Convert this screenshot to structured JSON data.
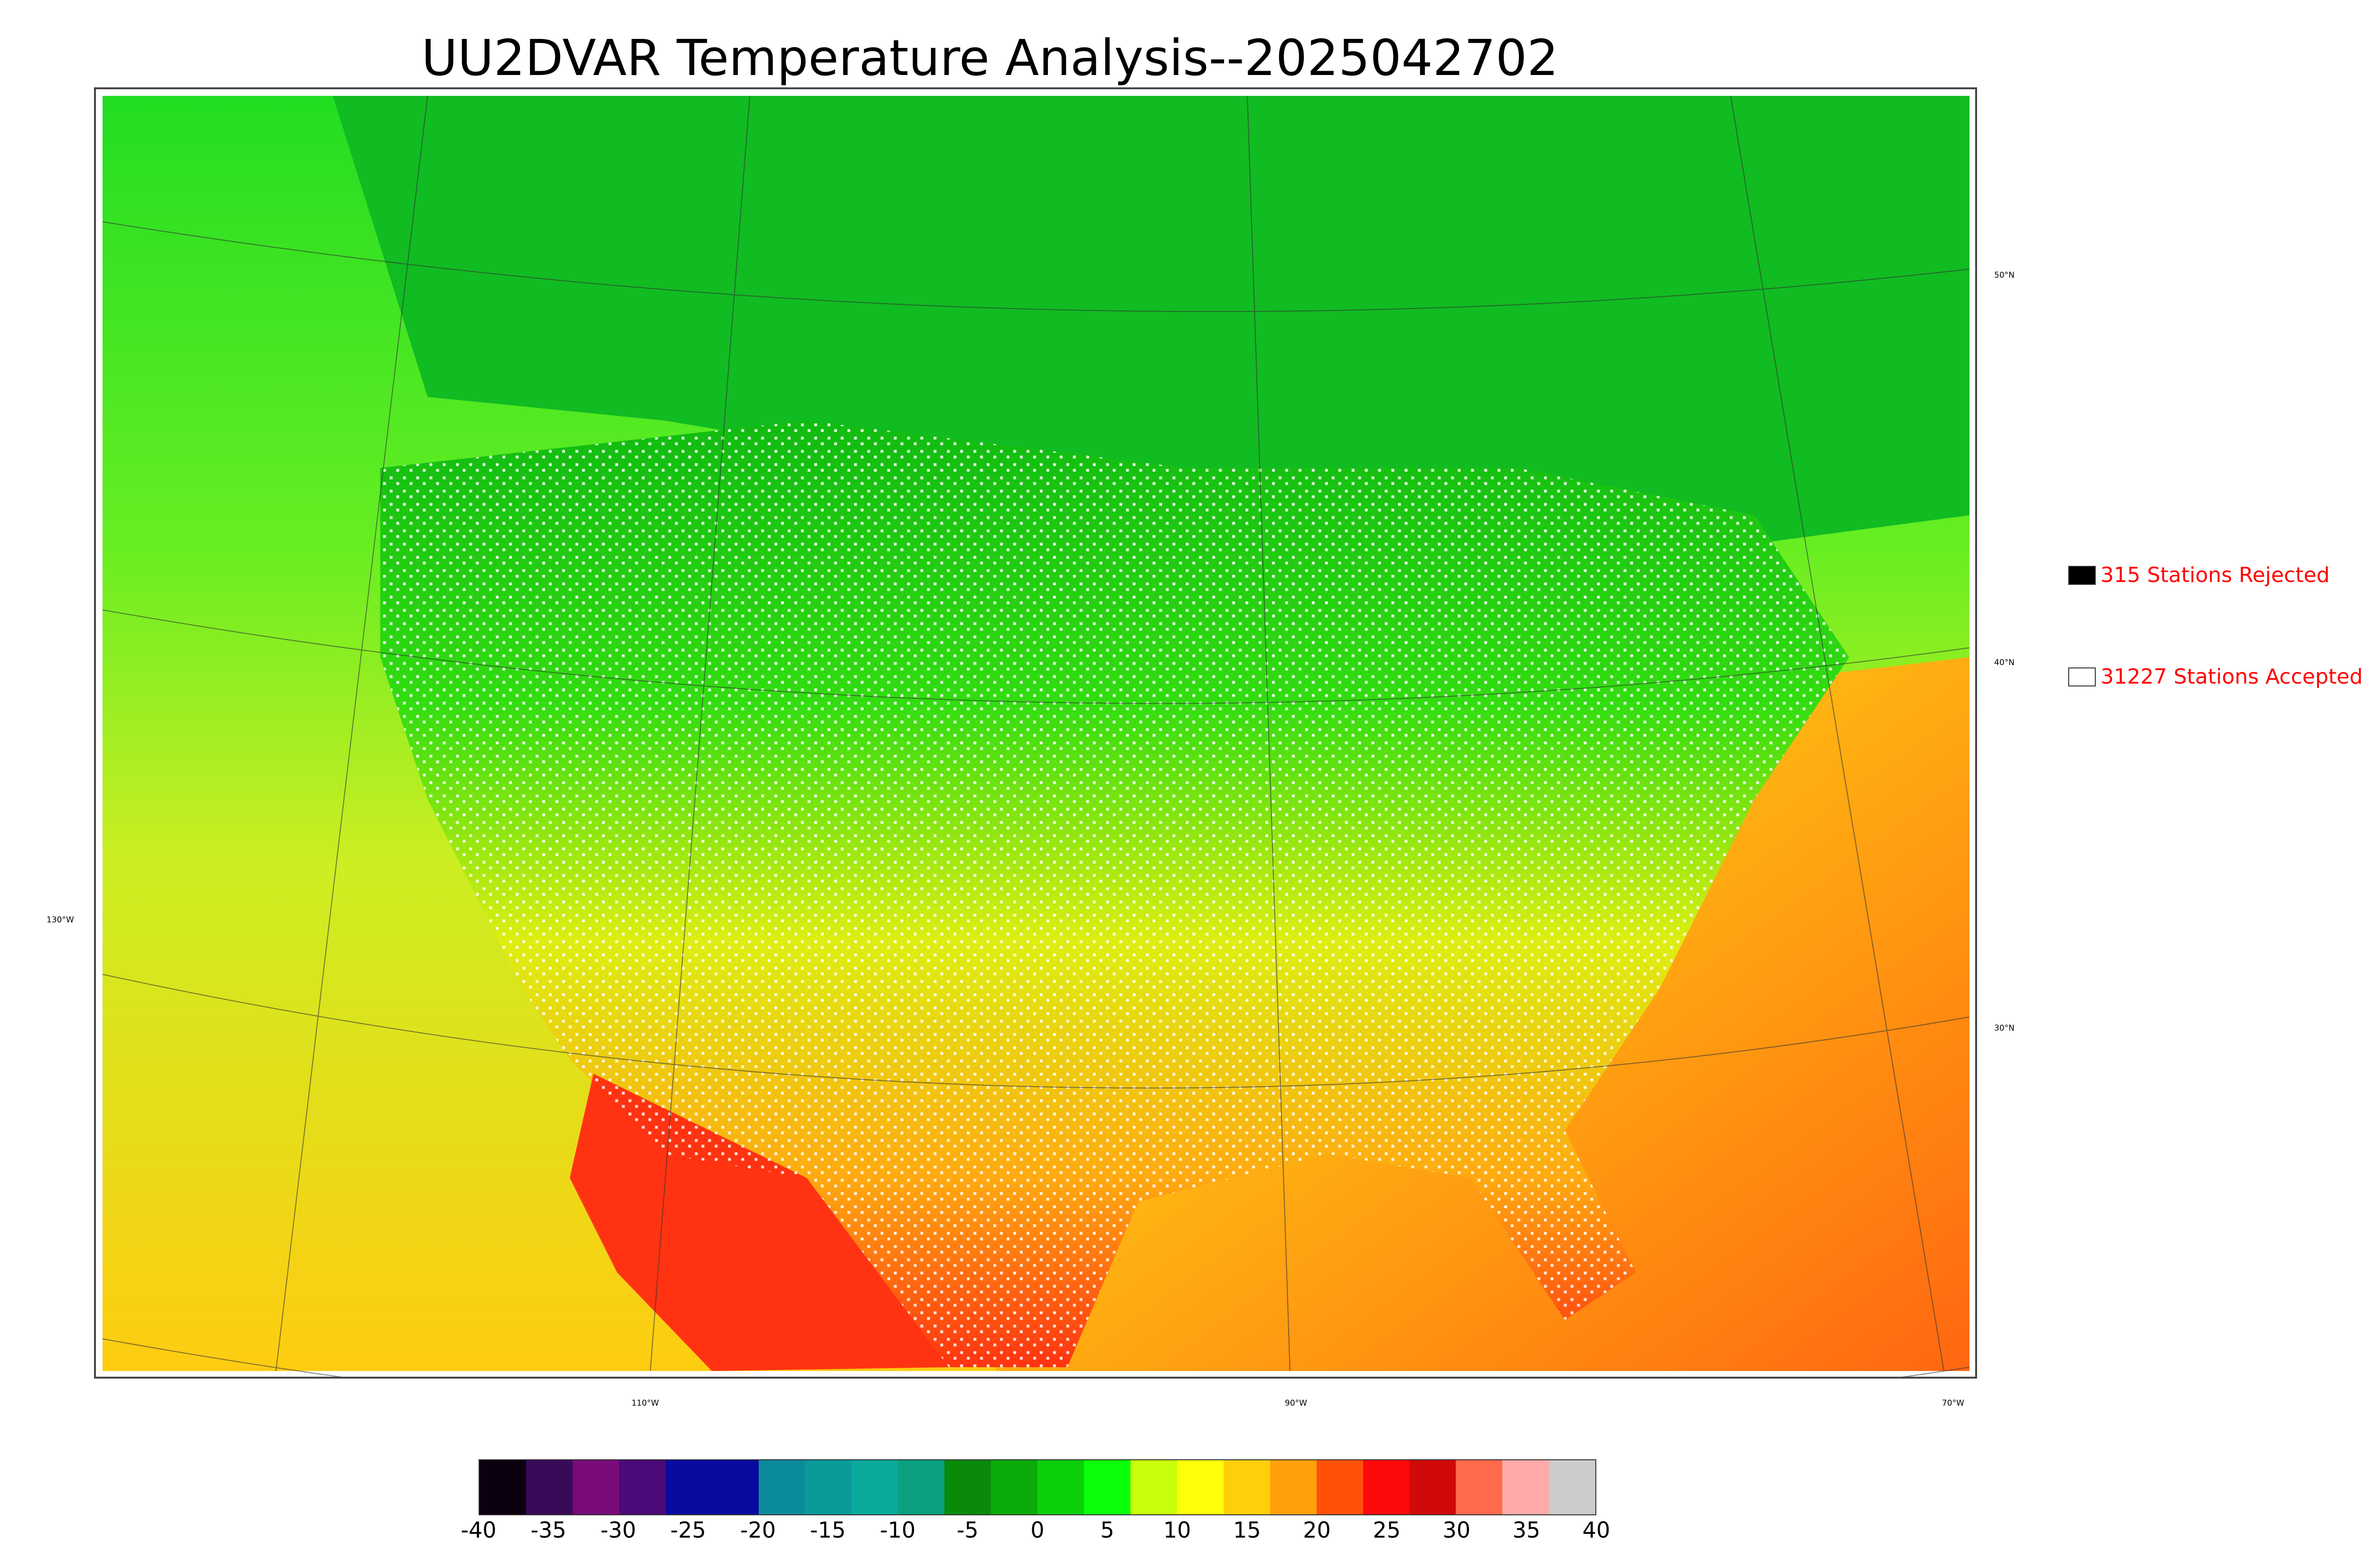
{
  "title": "UU2DVAR Temperature Analysis--2025042702",
  "legend": {
    "rejected": {
      "label": "315 Stations Rejected",
      "swatch_color": "#000000"
    },
    "accepted": {
      "label": "31227 Stations Accepted",
      "swatch_color": "#ffffff"
    }
  },
  "lat_labels": [
    "50°N",
    "40°N",
    "30°N"
  ],
  "lon_labels": [
    "130°W",
    "110°W",
    "90°W",
    "70°W"
  ],
  "colorbar": {
    "ticks": [
      "-40",
      "-35",
      "-30",
      "-25",
      "-20",
      "-15",
      "-10",
      "-5",
      "0",
      "5",
      "10",
      "15",
      "20",
      "25",
      "30",
      "35",
      "40"
    ],
    "min": -40,
    "max": 40,
    "colors": [
      "#0a0010",
      "#3a0a5a",
      "#7a0a7a",
      "#4a0a7a",
      "#0a0aa0",
      "#0a0aa0",
      "#0a8a9a",
      "#0a9a9a",
      "#0aaa9a",
      "#0aa080",
      "#0a8a0a",
      "#0aaa0a",
      "#0ad00a",
      "#0aff0a",
      "#c8ff0a",
      "#ffff0a",
      "#ffd00a",
      "#ffa00a",
      "#ff500a",
      "#ff0a0a",
      "#d00a0a",
      "#ff6a4a",
      "#ffaaaa",
      "#cccccc"
    ]
  }
}
